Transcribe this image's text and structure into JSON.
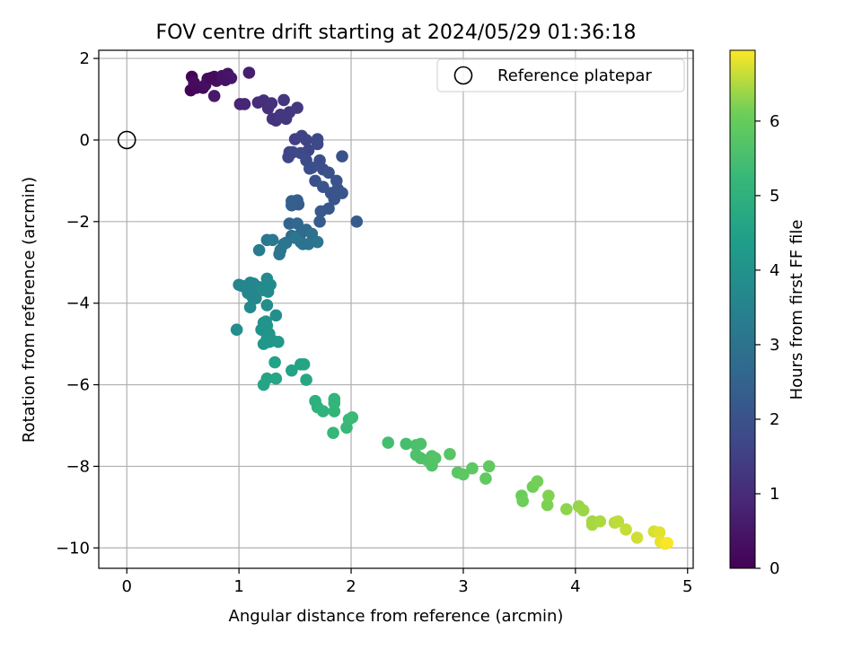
{
  "chart_data": {
    "type": "scatter",
    "title": "FOV centre drift starting at 2024/05/29 01:36:18",
    "xlabel": "Angular distance from reference (arcmin)",
    "ylabel": "Rotation from reference (arcmin)",
    "xlim": [
      -0.25,
      5.05
    ],
    "ylim": [
      -10.5,
      2.2
    ],
    "xticks": [
      "0",
      "1",
      "2",
      "3",
      "4",
      "5"
    ],
    "xtick_values": [
      0,
      1,
      2,
      3,
      4,
      5
    ],
    "yticks": [
      "−10",
      "−8",
      "−6",
      "−4",
      "−2",
      "0",
      "2"
    ],
    "ytick_values": [
      -10,
      -8,
      -6,
      -4,
      -2,
      0,
      2
    ],
    "grid": true,
    "legend": {
      "position": "upper-right",
      "entries": [
        "Reference platepar"
      ]
    },
    "reference_point": {
      "x": 0,
      "y": 0,
      "marker": "open-circle"
    },
    "colorbar": {
      "label": "Hours from first FF file",
      "colormap": "viridis",
      "range": [
        0,
        6.95
      ],
      "ticks": [
        "0",
        "1",
        "2",
        "3",
        "4",
        "5",
        "6"
      ],
      "tick_values": [
        0,
        1,
        2,
        3,
        4,
        5,
        6
      ]
    },
    "points": [
      [
        0.57,
        1.22,
        0.05
      ],
      [
        0.58,
        1.55,
        0.1
      ],
      [
        0.62,
        1.28,
        0.15
      ],
      [
        0.68,
        1.28,
        0.2
      ],
      [
        0.72,
        1.5,
        0.25
      ],
      [
        0.78,
        1.55,
        0.3
      ],
      [
        0.8,
        1.45,
        0.35
      ],
      [
        0.85,
        1.57,
        0.4
      ],
      [
        0.9,
        1.62,
        0.45
      ],
      [
        0.93,
        1.52,
        0.5
      ],
      [
        0.78,
        1.08,
        0.55
      ],
      [
        0.6,
        1.4,
        0.25
      ],
      [
        0.7,
        1.35,
        0.3
      ],
      [
        0.88,
        1.47,
        0.45
      ],
      [
        0.75,
        1.52,
        0.2
      ],
      [
        1.09,
        1.65,
        0.7
      ],
      [
        1.01,
        0.88,
        0.8
      ],
      [
        1.05,
        0.88,
        0.85
      ],
      [
        1.17,
        0.92,
        1.0
      ],
      [
        1.22,
        0.97,
        1.05
      ],
      [
        1.26,
        0.78,
        1.1
      ],
      [
        1.29,
        0.9,
        1.12
      ],
      [
        1.3,
        0.52,
        1.18
      ],
      [
        1.33,
        0.48,
        1.2
      ],
      [
        1.4,
        0.98,
        1.25
      ],
      [
        1.45,
        0.68,
        1.28
      ],
      [
        1.52,
        0.79,
        1.32
      ],
      [
        1.37,
        0.62,
        1.3
      ],
      [
        1.42,
        0.52,
        1.3
      ],
      [
        1.5,
        0.02,
        1.5
      ],
      [
        1.56,
        0.1,
        1.55
      ],
      [
        1.6,
        0.0,
        1.6
      ],
      [
        1.62,
        -0.25,
        1.65
      ],
      [
        1.7,
        -0.1,
        1.7
      ],
      [
        1.45,
        -0.3,
        1.62
      ],
      [
        1.44,
        -0.42,
        1.66
      ],
      [
        1.48,
        -0.3,
        1.7
      ],
      [
        1.55,
        -0.32,
        1.75
      ],
      [
        1.6,
        -0.5,
        1.8
      ],
      [
        1.63,
        -0.7,
        1.85
      ],
      [
        1.7,
        0.02,
        1.78
      ],
      [
        1.72,
        -0.5,
        1.88
      ],
      [
        1.75,
        -0.72,
        1.9
      ],
      [
        1.65,
        -0.68,
        1.92
      ],
      [
        1.68,
        -1.0,
        1.95
      ],
      [
        1.8,
        -0.8,
        1.98
      ],
      [
        1.92,
        -0.4,
        2.0
      ],
      [
        1.87,
        -1.0,
        2.02
      ],
      [
        1.82,
        -1.3,
        2.05
      ],
      [
        1.88,
        -1.2,
        2.05
      ],
      [
        1.85,
        -1.45,
        2.1
      ],
      [
        1.75,
        -1.15,
        2.1
      ],
      [
        1.92,
        -1.3,
        2.12
      ],
      [
        1.8,
        -1.68,
        2.15
      ],
      [
        1.73,
        -1.75,
        2.2
      ],
      [
        2.05,
        -2.0,
        2.25
      ],
      [
        1.72,
        -2.0,
        2.3
      ],
      [
        1.53,
        -1.58,
        2.3
      ],
      [
        1.47,
        -1.5,
        2.35
      ],
      [
        1.52,
        -1.48,
        2.35
      ],
      [
        1.47,
        -1.6,
        2.38
      ],
      [
        1.45,
        -2.05,
        2.55
      ],
      [
        1.52,
        -2.05,
        2.6
      ],
      [
        1.55,
        -2.3,
        2.7
      ],
      [
        1.6,
        -2.2,
        2.75
      ],
      [
        1.47,
        -2.35,
        2.8
      ],
      [
        1.42,
        -2.52,
        2.85
      ],
      [
        1.55,
        -2.5,
        2.85
      ],
      [
        1.65,
        -2.3,
        2.9
      ],
      [
        1.57,
        -2.55,
        2.95
      ],
      [
        1.62,
        -2.55,
        3.0
      ],
      [
        1.37,
        -2.7,
        3.0
      ],
      [
        1.4,
        -2.55,
        3.05
      ],
      [
        1.7,
        -2.5,
        3.05
      ],
      [
        1.5,
        -2.4,
        3.1
      ],
      [
        1.36,
        -2.8,
        3.1
      ],
      [
        1.25,
        -2.45,
        3.15
      ],
      [
        1.3,
        -2.45,
        3.2
      ],
      [
        1.18,
        -2.7,
        3.25
      ],
      [
        1.0,
        -3.55,
        3.5
      ],
      [
        1.05,
        -3.6,
        3.52
      ],
      [
        1.08,
        -3.75,
        3.55
      ],
      [
        1.1,
        -3.5,
        3.58
      ],
      [
        1.13,
        -3.52,
        3.6
      ],
      [
        1.17,
        -3.6,
        3.62
      ],
      [
        1.12,
        -3.85,
        3.65
      ],
      [
        1.15,
        -3.88,
        3.65
      ],
      [
        1.1,
        -4.1,
        3.7
      ],
      [
        1.2,
        -3.62,
        3.7
      ],
      [
        1.25,
        -3.4,
        3.72
      ],
      [
        1.26,
        -3.72,
        3.75
      ],
      [
        1.28,
        -3.55,
        3.75
      ],
      [
        1.22,
        -3.68,
        3.78
      ],
      [
        1.03,
        -3.58,
        3.6
      ],
      [
        1.07,
        -3.65,
        3.62
      ],
      [
        1.25,
        -4.05,
        3.85
      ],
      [
        1.33,
        -4.3,
        3.9
      ],
      [
        1.24,
        -4.45,
        3.95
      ],
      [
        0.98,
        -4.65,
        3.85
      ],
      [
        1.2,
        -4.65,
        4.0
      ],
      [
        1.22,
        -4.48,
        4.05
      ],
      [
        1.25,
        -4.55,
        4.05
      ],
      [
        1.27,
        -4.75,
        4.1
      ],
      [
        1.25,
        -4.85,
        4.1
      ],
      [
        1.27,
        -4.95,
        4.12
      ],
      [
        1.3,
        -4.92,
        4.15
      ],
      [
        1.22,
        -5.0,
        4.15
      ],
      [
        1.35,
        -4.95,
        4.18
      ],
      [
        1.32,
        -5.45,
        4.5
      ],
      [
        1.47,
        -5.65,
        4.52
      ],
      [
        1.55,
        -5.5,
        4.55
      ],
      [
        1.58,
        -5.5,
        4.58
      ],
      [
        1.25,
        -5.85,
        4.6
      ],
      [
        1.22,
        -6.0,
        4.62
      ],
      [
        1.33,
        -5.85,
        4.65
      ],
      [
        1.6,
        -5.88,
        4.68
      ],
      [
        1.68,
        -6.4,
        4.95
      ],
      [
        1.7,
        -6.55,
        5.0
      ],
      [
        1.75,
        -6.65,
        5.05
      ],
      [
        1.85,
        -6.35,
        5.1
      ],
      [
        1.85,
        -6.45,
        5.12
      ],
      [
        1.85,
        -6.65,
        5.15
      ],
      [
        1.84,
        -7.18,
        5.2
      ],
      [
        1.96,
        -7.05,
        5.25
      ],
      [
        1.98,
        -6.85,
        5.28
      ],
      [
        2.01,
        -6.8,
        5.3
      ],
      [
        2.33,
        -7.42,
        5.45
      ],
      [
        2.49,
        -7.45,
        5.5
      ],
      [
        2.58,
        -7.48,
        5.55
      ],
      [
        2.62,
        -7.45,
        5.58
      ],
      [
        2.58,
        -7.72,
        5.6
      ],
      [
        2.62,
        -7.8,
        5.62
      ],
      [
        2.68,
        -7.85,
        5.65
      ],
      [
        2.72,
        -7.75,
        5.68
      ],
      [
        2.75,
        -7.8,
        5.7
      ],
      [
        2.72,
        -7.98,
        5.7
      ],
      [
        2.88,
        -7.7,
        5.75
      ],
      [
        2.95,
        -8.15,
        5.8
      ],
      [
        3.0,
        -8.2,
        5.85
      ],
      [
        3.08,
        -8.05,
        5.85
      ],
      [
        3.2,
        -8.3,
        5.9
      ],
      [
        3.23,
        -8.0,
        5.92
      ],
      [
        3.52,
        -8.72,
        6.05
      ],
      [
        3.53,
        -8.85,
        6.1
      ],
      [
        3.62,
        -8.5,
        6.12
      ],
      [
        3.66,
        -8.37,
        6.15
      ],
      [
        3.75,
        -8.95,
        6.2
      ],
      [
        3.76,
        -8.72,
        6.22
      ],
      [
        3.92,
        -9.05,
        6.3
      ],
      [
        4.03,
        -8.98,
        6.35
      ],
      [
        4.07,
        -9.08,
        6.38
      ],
      [
        4.15,
        -9.35,
        6.42
      ],
      [
        4.15,
        -9.43,
        6.45
      ],
      [
        4.22,
        -9.35,
        6.48
      ],
      [
        4.35,
        -9.38,
        6.55
      ],
      [
        4.38,
        -9.35,
        6.58
      ],
      [
        4.45,
        -9.55,
        6.62
      ],
      [
        4.55,
        -9.75,
        6.68
      ],
      [
        4.7,
        -9.6,
        6.72
      ],
      [
        4.75,
        -9.62,
        6.78
      ],
      [
        4.76,
        -9.85,
        6.82
      ],
      [
        4.8,
        -9.9,
        6.88
      ],
      [
        4.82,
        -9.88,
        6.92
      ]
    ]
  }
}
